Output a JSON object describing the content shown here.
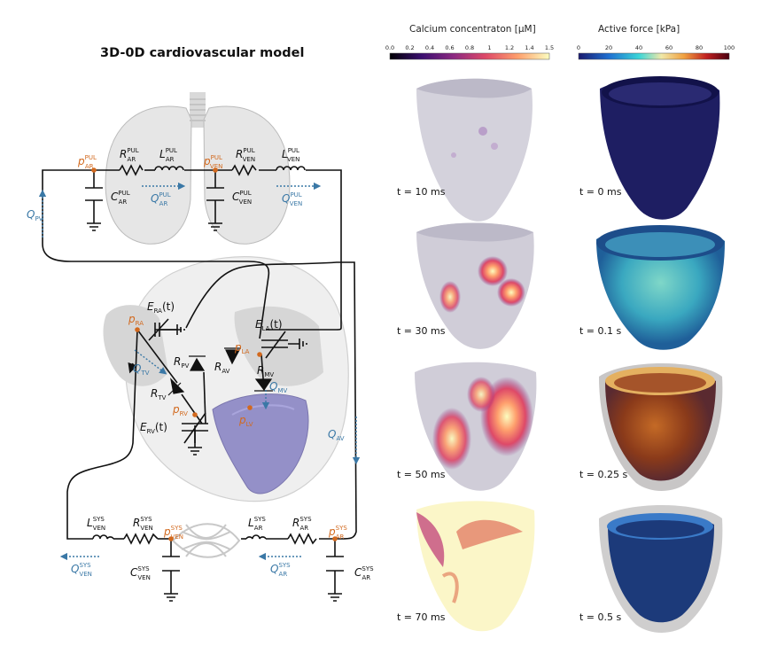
{
  "title": "3D-0D cardiovascular model",
  "pulmonary": {
    "p_ar": {
      "sym": "p",
      "sub": "AR",
      "sup": "PUL"
    },
    "r_ar": {
      "sym": "R",
      "sub": "AR",
      "sup": "PUL"
    },
    "l_ar": {
      "sym": "L",
      "sub": "AR",
      "sup": "PUL"
    },
    "c_ar": {
      "sym": "C",
      "sub": "AR",
      "sup": "PUL"
    },
    "q_ar": {
      "sym": "Q",
      "sub": "AR",
      "sup": "PUL"
    },
    "p_ven": {
      "sym": "p",
      "sub": "VEN",
      "sup": "PUL"
    },
    "r_ven": {
      "sym": "R",
      "sub": "VEN",
      "sup": "PUL"
    },
    "l_ven": {
      "sym": "L",
      "sub": "VEN",
      "sup": "PUL"
    },
    "c_ven": {
      "sym": "C",
      "sub": "VEN",
      "sup": "PUL"
    },
    "q_ven": {
      "sym": "Q",
      "sub": "VEN",
      "sup": "PUL"
    }
  },
  "heart": {
    "q_pv": {
      "sym": "Q",
      "sub": "PV"
    },
    "e_ra": {
      "sym": "E",
      "sub": "RA",
      "suffix": "(t)"
    },
    "e_la": {
      "sym": "E",
      "sub": "LA",
      "suffix": "(t)"
    },
    "p_ra": {
      "sym": "p",
      "sub": "RA"
    },
    "p_la": {
      "sym": "p",
      "sub": "LA"
    },
    "r_pv": {
      "sym": "R",
      "sub": "PV"
    },
    "r_av": {
      "sym": "R",
      "sub": "AV"
    },
    "r_mv": {
      "sym": "R",
      "sub": "MV"
    },
    "q_mv": {
      "sym": "Q",
      "sub": "MV"
    },
    "q_tv": {
      "sym": "Q",
      "sub": "TV"
    },
    "r_tv": {
      "sym": "R",
      "sub": "TV"
    },
    "p_rv": {
      "sym": "p",
      "sub": "RV"
    },
    "p_lv": {
      "sym": "p",
      "sub": "LV"
    },
    "e_rv": {
      "sym": "E",
      "sub": "RV",
      "suffix": "(t)"
    },
    "q_av": {
      "sym": "Q",
      "sub": "AV"
    }
  },
  "systemic": {
    "l_ven": {
      "sym": "L",
      "sub": "VEN",
      "sup": "SYS"
    },
    "r_ven": {
      "sym": "R",
      "sub": "VEN",
      "sup": "SYS"
    },
    "p_ven": {
      "sym": "p",
      "sub": "VEN",
      "sup": "SYS"
    },
    "c_ven": {
      "sym": "C",
      "sub": "VEN",
      "sup": "SYS"
    },
    "q_ven": {
      "sym": "Q",
      "sub": "VEN",
      "sup": "SYS"
    },
    "l_ar": {
      "sym": "L",
      "sub": "AR",
      "sup": "SYS"
    },
    "r_ar": {
      "sym": "R",
      "sub": "AR",
      "sup": "SYS"
    },
    "p_ar": {
      "sym": "p",
      "sub": "AR",
      "sup": "SYS"
    },
    "c_ar": {
      "sym": "C",
      "sub": "AR",
      "sup": "SYS"
    },
    "q_ar": {
      "sym": "Q",
      "sub": "AR",
      "sup": "SYS"
    }
  },
  "calcium": {
    "title": "Calcium concentraton [μM]",
    "ticks": [
      "0.0",
      "0.2",
      "0.4",
      "0.6",
      "0.8",
      "1",
      "1.2",
      "1.4",
      "1.5"
    ],
    "times": [
      "t = 10 ms",
      "t = 30 ms",
      "t = 50 ms",
      "t = 70 ms"
    ]
  },
  "force": {
    "title": "Active force [kPa]",
    "ticks": [
      "0",
      "20",
      "40",
      "60",
      "80",
      "100"
    ],
    "times": [
      "t = 0 ms",
      "t = 0.1 s",
      "t = 0.25 s",
      "t = 0.5 s"
    ]
  },
  "colors": {
    "pressure_node": "#d2691e",
    "flow_label": "#3a78a6",
    "lung_fill": "#e6e6e6",
    "lv_fill": "#8b86c4",
    "calcium_cmap": [
      "#000004",
      "#3b0f70",
      "#8c2981",
      "#de4968",
      "#fe9f6d",
      "#fcfdbf"
    ],
    "force_cmap": [
      "#1a1a6e",
      "#1f6fd1",
      "#3ad5d8",
      "#f0e8a8",
      "#f0a040",
      "#c02020",
      "#4a0010"
    ]
  }
}
